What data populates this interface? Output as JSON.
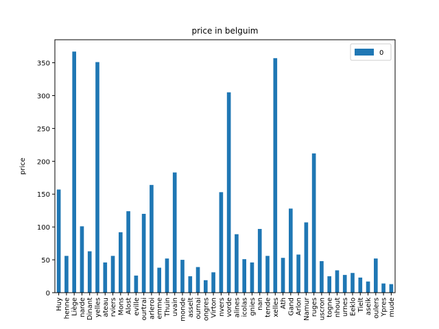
{
  "chart_data": {
    "type": "bar",
    "title": "price in belguim",
    "xlabel": "",
    "ylabel": "price",
    "ylim": [
      0,
      385
    ],
    "yticks": [
      0,
      50,
      100,
      150,
      200,
      250,
      300,
      350
    ],
    "grid": false,
    "legend_position": "top-right",
    "bar_color": "#1f77b4",
    "categories": [
      "Huy",
      "henne",
      "Liège",
      "narde",
      "Dinant",
      "yelles",
      "ateau",
      "rviers",
      "Mons",
      "Alost",
      "eville",
      "ourtrai",
      "arleroi",
      "emme",
      "Thuin",
      "uvain",
      "monde",
      "asselt",
      "ournai",
      "ongres",
      "Virton",
      "nvers",
      "vorde",
      "alines",
      "icolas",
      "gnies",
      "nan",
      "tende",
      "xelles",
      "Ath",
      "Gand",
      "Arlon",
      "Namur",
      "ruges",
      "uscron",
      "togne",
      "nhout",
      "urnes",
      "Eeklo",
      "Tielt",
      "aseik",
      "oulers",
      "Ypres",
      "mude"
    ],
    "series": [
      {
        "name": "0",
        "values": [
          157,
          56,
          367,
          101,
          63,
          351,
          46,
          56,
          92,
          124,
          26,
          120,
          164,
          38,
          52,
          183,
          50,
          25,
          39,
          19,
          31,
          153,
          305,
          89,
          51,
          46,
          97,
          56,
          357,
          53,
          128,
          58,
          107,
          212,
          48,
          25,
          34,
          27,
          30,
          23,
          17,
          52,
          14,
          13
        ]
      }
    ]
  }
}
